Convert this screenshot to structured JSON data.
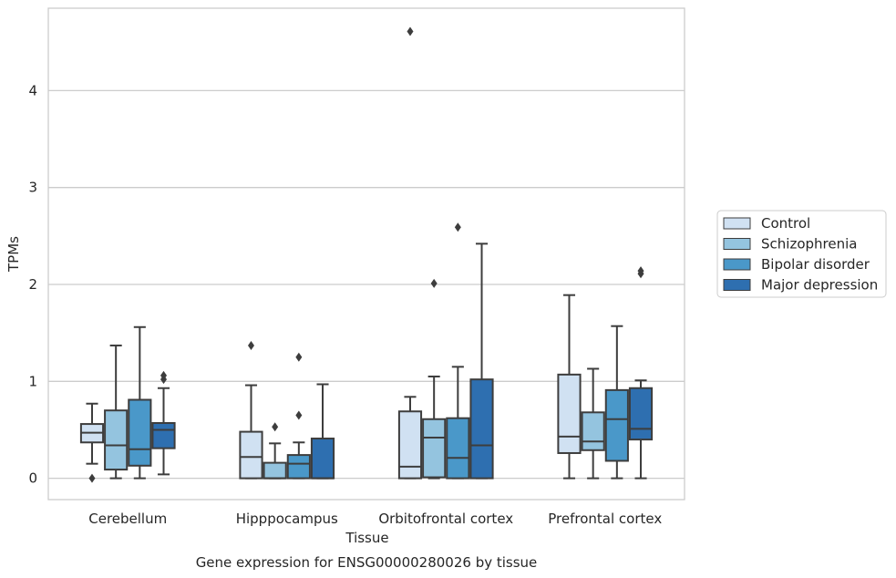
{
  "chart_data": {
    "type": "box",
    "title": "Gene expression for ENSG00000280026 by tissue",
    "xlabel": "Tissue",
    "ylabel": "TPMs",
    "ylim": [
      -0.22,
      4.85
    ],
    "yticks": [
      0,
      1,
      2,
      3,
      4
    ],
    "grid": true,
    "legend_position": "right",
    "categories": [
      "Cerebellum",
      "Hipppocampus",
      "Orbitofrontal cortex",
      "Prefrontal cortex"
    ],
    "series": [
      {
        "name": "Control",
        "color": "#d0e1f2",
        "boxes": [
          {
            "whislo": 0.15,
            "q1": 0.37,
            "med": 0.47,
            "q3": 0.56,
            "whishi": 0.77,
            "fliers": [
              0.0
            ]
          },
          {
            "whislo": 0.0,
            "q1": 0.0,
            "med": 0.22,
            "q3": 0.48,
            "whishi": 0.96,
            "fliers": [
              1.37
            ]
          },
          {
            "whislo": 0.0,
            "q1": 0.0,
            "med": 0.12,
            "q3": 0.69,
            "whishi": 0.84,
            "fliers": [
              4.61
            ]
          },
          {
            "whislo": 0.0,
            "q1": 0.26,
            "med": 0.43,
            "q3": 1.07,
            "whishi": 1.89,
            "fliers": []
          }
        ]
      },
      {
        "name": "Schizophrenia",
        "color": "#94c4df",
        "boxes": [
          {
            "whislo": 0.0,
            "q1": 0.09,
            "med": 0.34,
            "q3": 0.7,
            "whishi": 1.37,
            "fliers": []
          },
          {
            "whislo": 0.0,
            "q1": 0.0,
            "med": 0.0,
            "q3": 0.16,
            "whishi": 0.36,
            "fliers": [
              0.53
            ]
          },
          {
            "whislo": 0.0,
            "q1": 0.01,
            "med": 0.42,
            "q3": 0.61,
            "whishi": 1.05,
            "fliers": [
              2.01
            ]
          },
          {
            "whislo": 0.0,
            "q1": 0.29,
            "med": 0.38,
            "q3": 0.68,
            "whishi": 1.13,
            "fliers": []
          }
        ]
      },
      {
        "name": "Bipolar disorder",
        "color": "#4a98c9",
        "boxes": [
          {
            "whislo": 0.0,
            "q1": 0.13,
            "med": 0.3,
            "q3": 0.81,
            "whishi": 1.56,
            "fliers": []
          },
          {
            "whislo": 0.0,
            "q1": 0.0,
            "med": 0.15,
            "q3": 0.24,
            "whishi": 0.37,
            "fliers": [
              0.65,
              1.25
            ]
          },
          {
            "whislo": 0.0,
            "q1": 0.0,
            "med": 0.21,
            "q3": 0.62,
            "whishi": 1.15,
            "fliers": [
              2.59
            ]
          },
          {
            "whislo": 0.0,
            "q1": 0.18,
            "med": 0.61,
            "q3": 0.91,
            "whishi": 1.57,
            "fliers": []
          }
        ]
      },
      {
        "name": "Major depression",
        "color": "#2e6fb0",
        "boxes": [
          {
            "whislo": 0.04,
            "q1": 0.31,
            "med": 0.5,
            "q3": 0.57,
            "whishi": 0.93,
            "fliers": [
              1.02,
              1.06
            ]
          },
          {
            "whislo": 0.0,
            "q1": 0.0,
            "med": 0.0,
            "q3": 0.41,
            "whishi": 0.97,
            "fliers": []
          },
          {
            "whislo": 0.0,
            "q1": 0.0,
            "med": 0.34,
            "q3": 1.02,
            "whishi": 2.42,
            "fliers": []
          },
          {
            "whislo": 0.0,
            "q1": 0.4,
            "med": 0.51,
            "q3": 0.93,
            "whishi": 1.01,
            "fliers": [
              2.11,
              2.14
            ]
          }
        ]
      }
    ]
  }
}
